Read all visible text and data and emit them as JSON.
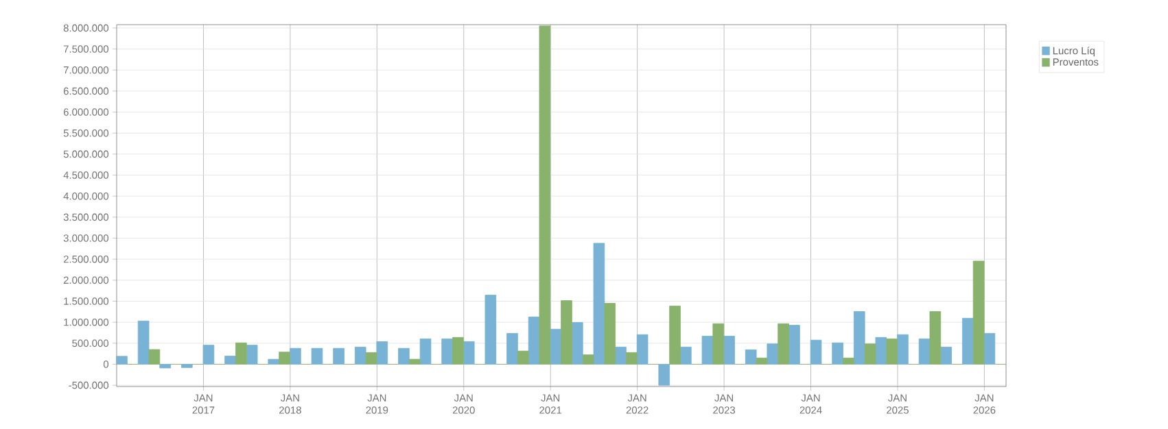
{
  "chart_data": {
    "type": "bar",
    "x": [
      "2016-02-15",
      "2016-05-15",
      "2016-08-15",
      "2016-11-15",
      "2017-02-15",
      "2017-05-15",
      "2017-08-15",
      "2017-11-15",
      "2018-02-15",
      "2018-05-15",
      "2018-08-15",
      "2018-11-15",
      "2019-02-15",
      "2019-05-15",
      "2019-08-15",
      "2019-11-15",
      "2020-02-15",
      "2020-05-15",
      "2020-08-15",
      "2020-11-15",
      "2021-02-15",
      "2021-05-15",
      "2021-08-15",
      "2021-11-15",
      "2022-02-15",
      "2022-05-15",
      "2022-08-15",
      "2022-11-15",
      "2023-02-15",
      "2023-05-15",
      "2023-08-15",
      "2023-11-15",
      "2024-02-15",
      "2024-05-15",
      "2024-08-15",
      "2024-11-15",
      "2025-02-15",
      "2025-05-15",
      "2025-08-15",
      "2025-11-15",
      "2026-02-15"
    ],
    "series": [
      {
        "name": "Lucro Líq",
        "color": "#78b2d4",
        "values": [
          190000,
          1030000,
          -90000,
          -80000,
          455000,
          195000,
          455000,
          120000,
          380000,
          380000,
          380000,
          410000,
          540000,
          380000,
          605000,
          605000,
          540000,
          1645000,
          735000,
          1125000,
          835000,
          995000,
          2880000,
          410000,
          705000,
          -500000,
          410000,
          670000,
          670000,
          345000,
          485000,
          930000,
          575000,
          510000,
          1255000,
          640000,
          705000,
          605000,
          410000,
          1095000,
          735000
        ]
      },
      {
        "name": "Proventos",
        "color": "#89b26d",
        "values": [
          0,
          350000,
          0,
          0,
          0,
          510000,
          0,
          290000,
          0,
          0,
          0,
          280000,
          0,
          120000,
          0,
          640000,
          0,
          0,
          315000,
          8050000,
          1515000,
          225000,
          1450000,
          280000,
          0,
          1385000,
          0,
          965000,
          0,
          150000,
          965000,
          0,
          0,
          150000,
          485000,
          605000,
          0,
          1255000,
          0,
          2455000,
          0
        ]
      }
    ],
    "xlim": [
      "2016-01-01",
      "2026-04-01"
    ],
    "xticks": [
      {
        "value": "2017-01-01",
        "label": "JAN 2017"
      },
      {
        "value": "2018-01-01",
        "label": "JAN 2018"
      },
      {
        "value": "2019-01-01",
        "label": "JAN 2019"
      },
      {
        "value": "2020-01-01",
        "label": "JAN 2020"
      },
      {
        "value": "2021-01-01",
        "label": "JAN 2021"
      },
      {
        "value": "2022-01-01",
        "label": "JAN 2022"
      },
      {
        "value": "2023-01-01",
        "label": "JAN 2023"
      },
      {
        "value": "2024-01-01",
        "label": "JAN 2024"
      },
      {
        "value": "2025-01-01",
        "label": "JAN 2025"
      },
      {
        "value": "2026-01-01",
        "label": "JAN 2026"
      }
    ],
    "ylim": [
      -530000,
      8080000
    ],
    "yticks": [
      {
        "value": -500000,
        "label": "-500.000"
      },
      0,
      {
        "value": 500000,
        "label": "500.000"
      },
      {
        "value": 1000000,
        "label": "1.000.000"
      },
      {
        "value": 1500000,
        "label": "1.500.000"
      },
      {
        "value": 2000000,
        "label": "2.000.000"
      },
      {
        "value": 2500000,
        "label": "2.500.000"
      },
      {
        "value": 3000000,
        "label": "3.000.000"
      },
      {
        "value": 3500000,
        "label": "3.500.000"
      },
      {
        "value": 4000000,
        "label": "4.000.000"
      },
      {
        "value": 4500000,
        "label": "4.500.000"
      },
      {
        "value": 5000000,
        "label": "5.000.000"
      },
      {
        "value": 5500000,
        "label": "5.500.000"
      },
      {
        "value": 6000000,
        "label": "6.000.000"
      },
      {
        "value": 6500000,
        "label": "6.500.000"
      },
      {
        "value": 7000000,
        "label": "7.000.000"
      },
      {
        "value": 7500000,
        "label": "7.500.000"
      },
      {
        "value": 8000000,
        "label": "8.000.000"
      }
    ],
    "grid": true,
    "legend": "top right"
  }
}
